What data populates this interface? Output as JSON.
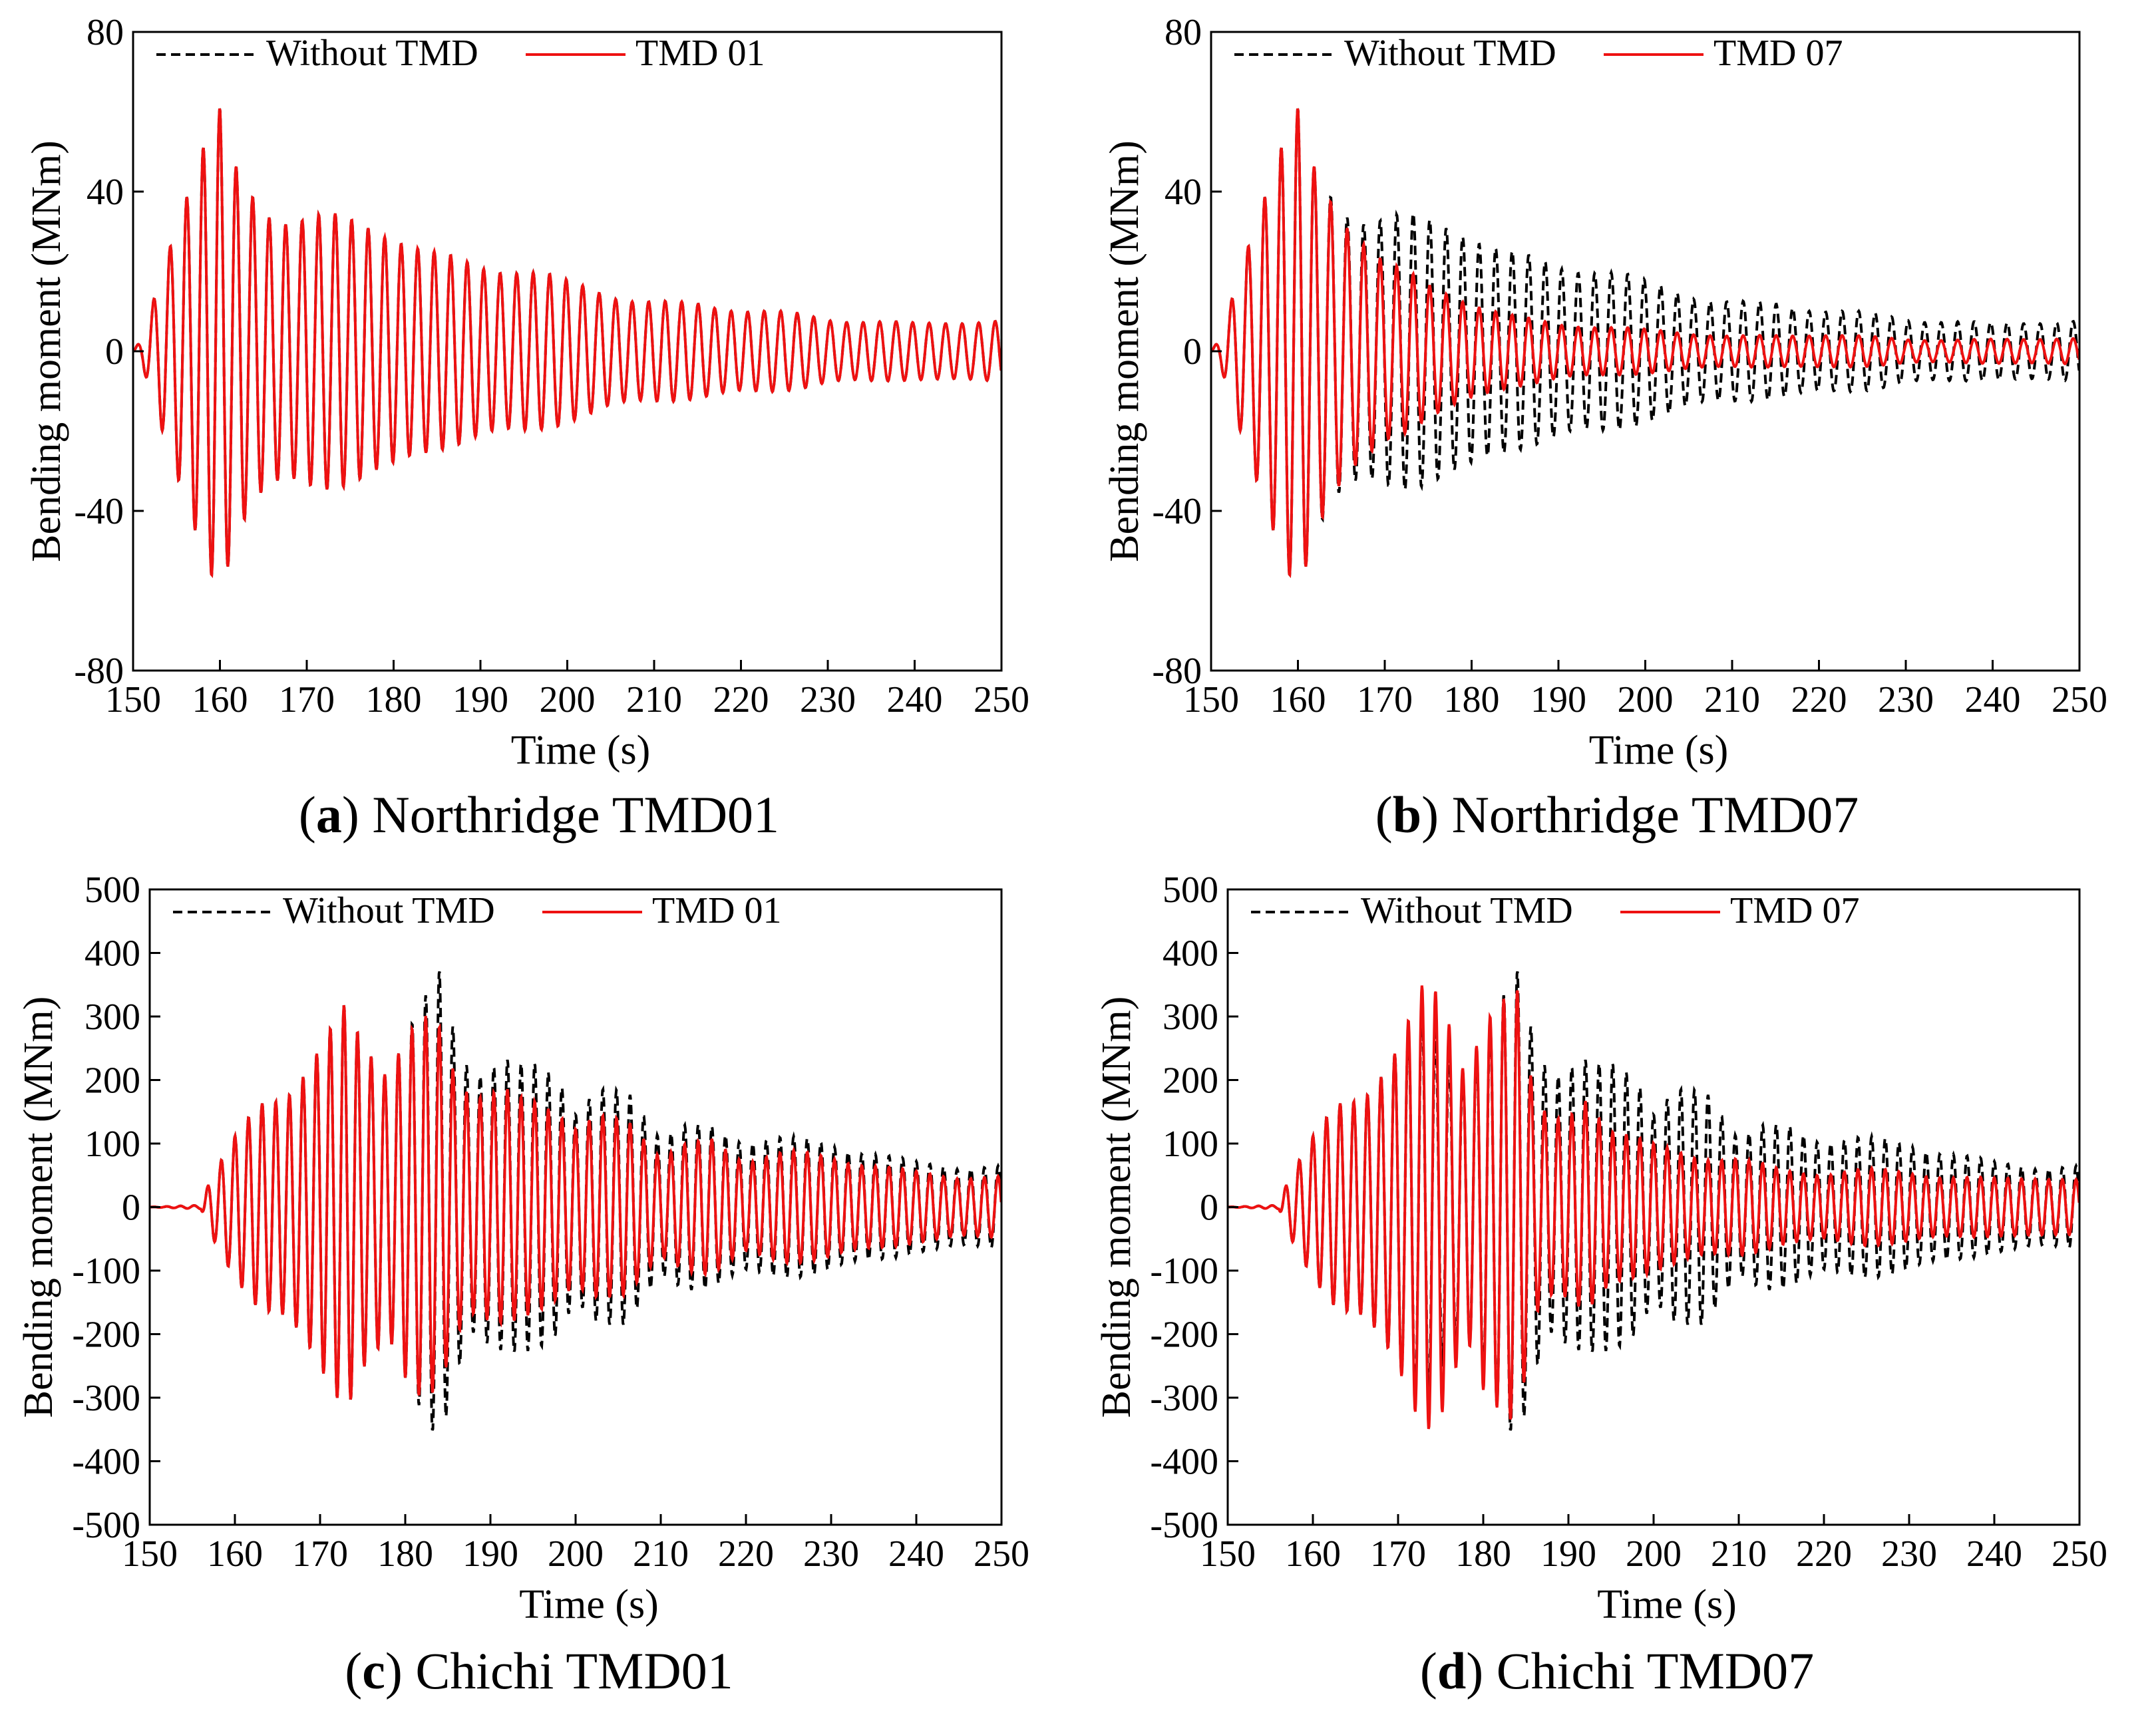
{
  "colors": {
    "without": "#000000",
    "tmd": "#ee1111",
    "axis": "#000000"
  },
  "chart_data": [
    {
      "type": "line",
      "panel_letter": "a",
      "caption": "Northridge TMD01",
      "xlabel": "Time (s)",
      "ylabel": "Bending moment (MNm)",
      "xlim": [
        150,
        250
      ],
      "ylim": [
        -80,
        80
      ],
      "xticks": [
        150,
        160,
        170,
        180,
        190,
        200,
        210,
        220,
        230,
        240,
        250
      ],
      "yticks": [
        -80,
        -40,
        0,
        40,
        80
      ],
      "legend": "top-left",
      "series": [
        {
          "name": "Without TMD",
          "style": "dashed",
          "envelope": [
            [
              150,
              0
            ],
            [
              151,
              3
            ],
            [
              152,
              10
            ],
            [
              154,
              25
            ],
            [
              156,
              38
            ],
            [
              158,
              50
            ],
            [
              160,
              60
            ],
            [
              162,
              46
            ],
            [
              165,
              38
            ],
            [
              168,
              34
            ],
            [
              170,
              33
            ],
            [
              175,
              30
            ],
            [
              180,
              29
            ],
            [
              185,
              25
            ],
            [
              190,
              22
            ],
            [
              195,
              20
            ],
            [
              200,
              16
            ],
            [
              205,
              14
            ],
            [
              210,
              13
            ],
            [
              215,
              12
            ],
            [
              220,
              10
            ],
            [
              225,
              9
            ],
            [
              230,
              8
            ],
            [
              235,
              8
            ],
            [
              240,
              7
            ],
            [
              245,
              7
            ],
            [
              250,
              7
            ]
          ],
          "period": 1.9
        },
        {
          "name": "TMD 01",
          "style": "solid",
          "envelope": [
            [
              150,
              0
            ],
            [
              151,
              3
            ],
            [
              152,
              10
            ],
            [
              154,
              25
            ],
            [
              156,
              38
            ],
            [
              158,
              50
            ],
            [
              160,
              60
            ],
            [
              162,
              46
            ],
            [
              165,
              38
            ],
            [
              168,
              34
            ],
            [
              170,
              33
            ],
            [
              175,
              30
            ],
            [
              180,
              29
            ],
            [
              185,
              25
            ],
            [
              190,
              22
            ],
            [
              195,
              20
            ],
            [
              200,
              16
            ],
            [
              205,
              14
            ],
            [
              210,
              13
            ],
            [
              215,
              12
            ],
            [
              220,
              10
            ],
            [
              225,
              9
            ],
            [
              230,
              8
            ],
            [
              235,
              8
            ],
            [
              240,
              7
            ],
            [
              245,
              7
            ],
            [
              250,
              7
            ]
          ],
          "period": 1.9
        }
      ]
    },
    {
      "type": "line",
      "panel_letter": "b",
      "caption": "Northridge TMD07",
      "xlabel": "Time (s)",
      "ylabel": "Bending moment (MNm)",
      "xlim": [
        150,
        250
      ],
      "ylim": [
        -80,
        80
      ],
      "xticks": [
        150,
        160,
        170,
        180,
        190,
        200,
        210,
        220,
        230,
        240,
        250
      ],
      "yticks": [
        -80,
        -40,
        0,
        40,
        80
      ],
      "legend": "top-left",
      "series": [
        {
          "name": "Without TMD",
          "style": "dashed",
          "envelope": [
            [
              150,
              0
            ],
            [
              151,
              3
            ],
            [
              152,
              10
            ],
            [
              154,
              25
            ],
            [
              156,
              38
            ],
            [
              158,
              50
            ],
            [
              160,
              60
            ],
            [
              162,
              46
            ],
            [
              165,
              38
            ],
            [
              168,
              34
            ],
            [
              170,
              33
            ],
            [
              175,
              30
            ],
            [
              180,
              29
            ],
            [
              185,
              25
            ],
            [
              190,
              22
            ],
            [
              195,
              20
            ],
            [
              200,
              16
            ],
            [
              205,
              14
            ],
            [
              210,
              13
            ],
            [
              215,
              12
            ],
            [
              220,
              10
            ],
            [
              225,
              9
            ],
            [
              230,
              8
            ],
            [
              235,
              8
            ],
            [
              240,
              7
            ],
            [
              245,
              7
            ],
            [
              250,
              7
            ]
          ],
          "period": 1.9
        },
        {
          "name": "TMD 07",
          "style": "solid",
          "envelope": [
            [
              150,
              0
            ],
            [
              151,
              3
            ],
            [
              152,
              10
            ],
            [
              154,
              25
            ],
            [
              156,
              38
            ],
            [
              158,
              50
            ],
            [
              160,
              60
            ],
            [
              162,
              46
            ],
            [
              165,
              36
            ],
            [
              168,
              28
            ],
            [
              170,
              22
            ],
            [
              175,
              15
            ],
            [
              180,
              12
            ],
            [
              185,
              9
            ],
            [
              190,
              7
            ],
            [
              195,
              6
            ],
            [
              200,
              5
            ],
            [
              210,
              4
            ],
            [
              220,
              4
            ],
            [
              230,
              3
            ],
            [
              240,
              3
            ],
            [
              250,
              3
            ]
          ],
          "period": 1.9
        }
      ]
    },
    {
      "type": "line",
      "panel_letter": "c",
      "caption": "Chichi TMD01",
      "xlabel": "Time (s)",
      "ylabel": "Bending moment (MNm)",
      "xlim": [
        150,
        250
      ],
      "ylim": [
        -500,
        500
      ],
      "xticks": [
        150,
        160,
        170,
        180,
        190,
        200,
        210,
        220,
        230,
        240,
        250
      ],
      "yticks": [
        -500,
        -400,
        -300,
        -200,
        -100,
        0,
        100,
        200,
        300,
        400,
        500
      ],
      "legend": "top-left",
      "series": [
        {
          "name": "Without TMD",
          "style": "dashed",
          "envelope": [
            [
              150,
              0
            ],
            [
              156,
              3
            ],
            [
              157,
              40
            ],
            [
              160,
              110
            ],
            [
              163,
              170
            ],
            [
              166,
              190
            ],
            [
              170,
              250
            ],
            [
              173,
              290
            ],
            [
              175,
              230
            ],
            [
              178,
              200
            ],
            [
              180,
              280
            ],
            [
              182,
              340
            ],
            [
              184,
              380
            ],
            [
              186,
              260
            ],
            [
              188,
              200
            ],
            [
              190,
              230
            ],
            [
              192,
              250
            ],
            [
              195,
              230
            ],
            [
              198,
              180
            ],
            [
              200,
              130
            ],
            [
              203,
              180
            ],
            [
              206,
              200
            ],
            [
              210,
              110
            ],
            [
              213,
              130
            ],
            [
              216,
              130
            ],
            [
              220,
              100
            ],
            [
              225,
              100
            ],
            [
              230,
              100
            ],
            [
              235,
              90
            ],
            [
              240,
              70
            ],
            [
              245,
              60
            ],
            [
              250,
              60
            ]
          ],
          "period": 1.6
        },
        {
          "name": "TMD 01",
          "style": "solid",
          "envelope": [
            [
              150,
              0
            ],
            [
              156,
              3
            ],
            [
              157,
              40
            ],
            [
              160,
              110
            ],
            [
              163,
              170
            ],
            [
              166,
              190
            ],
            [
              170,
              250
            ],
            [
              173,
              290
            ],
            [
              175,
              230
            ],
            [
              178,
              200
            ],
            [
              180,
              280
            ],
            [
              182,
              320
            ],
            [
              184,
              290
            ],
            [
              186,
              200
            ],
            [
              188,
              170
            ],
            [
              190,
              190
            ],
            [
              192,
              200
            ],
            [
              195,
              170
            ],
            [
              198,
              130
            ],
            [
              200,
              110
            ],
            [
              203,
              140
            ],
            [
              206,
              150
            ],
            [
              210,
              80
            ],
            [
              213,
              100
            ],
            [
              216,
              110
            ],
            [
              220,
              70
            ],
            [
              225,
              80
            ],
            [
              230,
              80
            ],
            [
              235,
              70
            ],
            [
              240,
              55
            ],
            [
              245,
              45
            ],
            [
              250,
              45
            ]
          ],
          "period": 1.6
        }
      ]
    },
    {
      "type": "line",
      "panel_letter": "d",
      "caption": "Chichi TMD07",
      "xlabel": "Time (s)",
      "ylabel": "Bending moment (MNm)",
      "xlim": [
        150,
        250
      ],
      "ylim": [
        -500,
        500
      ],
      "xticks": [
        150,
        160,
        170,
        180,
        190,
        200,
        210,
        220,
        230,
        240,
        250
      ],
      "yticks": [
        -500,
        -400,
        -300,
        -200,
        -100,
        0,
        100,
        200,
        300,
        400,
        500
      ],
      "legend": "top-left",
      "series": [
        {
          "name": "Without TMD",
          "style": "dashed",
          "envelope": [
            [
              150,
              0
            ],
            [
              156,
              3
            ],
            [
              157,
              40
            ],
            [
              160,
              110
            ],
            [
              163,
              170
            ],
            [
              166,
              190
            ],
            [
              170,
              250
            ],
            [
              173,
              290
            ],
            [
              175,
              230
            ],
            [
              178,
              200
            ],
            [
              180,
              280
            ],
            [
              182,
              340
            ],
            [
              184,
              380
            ],
            [
              186,
              260
            ],
            [
              188,
              200
            ],
            [
              190,
              230
            ],
            [
              192,
              250
            ],
            [
              195,
              230
            ],
            [
              198,
              180
            ],
            [
              200,
              130
            ],
            [
              203,
              180
            ],
            [
              206,
              200
            ],
            [
              210,
              110
            ],
            [
              213,
              130
            ],
            [
              216,
              130
            ],
            [
              220,
              100
            ],
            [
              225,
              100
            ],
            [
              230,
              100
            ],
            [
              235,
              90
            ],
            [
              240,
              70
            ],
            [
              245,
              60
            ],
            [
              250,
              60
            ]
          ],
          "period": 1.6
        },
        {
          "name": "TMD 07",
          "style": "solid",
          "envelope": [
            [
              150,
              0
            ],
            [
              156,
              3
            ],
            [
              157,
              40
            ],
            [
              160,
              110
            ],
            [
              163,
              170
            ],
            [
              166,
              190
            ],
            [
              170,
              250
            ],
            [
              173,
              320
            ],
            [
              175,
              300
            ],
            [
              178,
              200
            ],
            [
              180,
              300
            ],
            [
              182,
              340
            ],
            [
              184,
              350
            ],
            [
              186,
              170
            ],
            [
              188,
              140
            ],
            [
              190,
              150
            ],
            [
              192,
              180
            ],
            [
              195,
              120
            ],
            [
              198,
              100
            ],
            [
              200,
              90
            ],
            [
              205,
              80
            ],
            [
              210,
              80
            ],
            [
              215,
              60
            ],
            [
              220,
              50
            ],
            [
              225,
              55
            ],
            [
              230,
              55
            ],
            [
              235,
              50
            ],
            [
              240,
              45
            ],
            [
              245,
              45
            ],
            [
              250,
              40
            ]
          ],
          "period": 1.6
        }
      ]
    }
  ]
}
